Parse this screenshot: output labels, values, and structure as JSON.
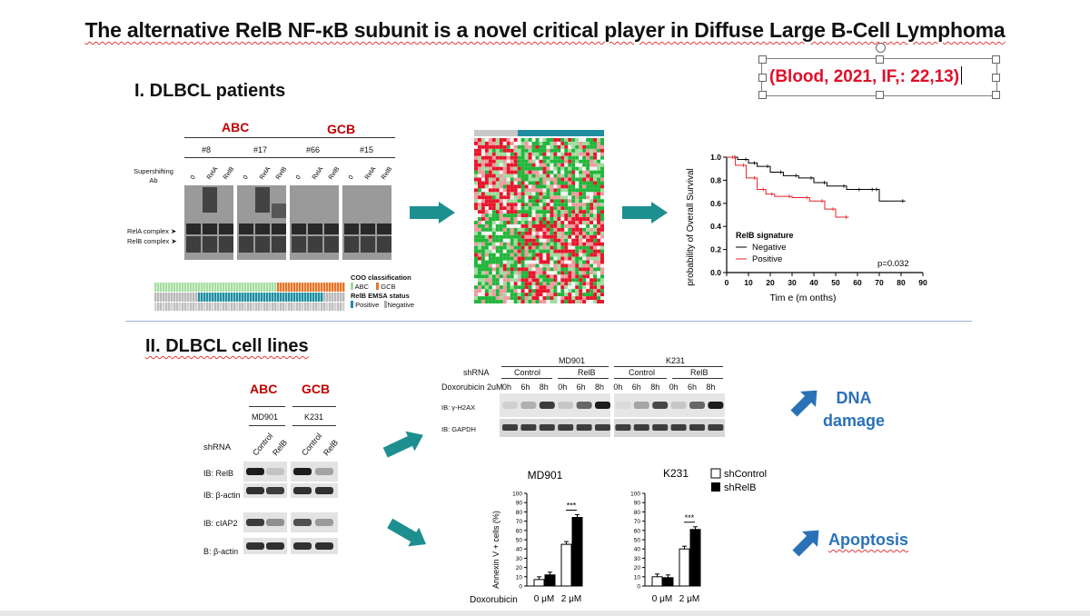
{
  "title": "The alternative RelB NF-κB subunit is a novel critical player in Diffuse Large B-Cell Lymphoma",
  "citation": "(Blood,  2021, IF,: 22,13)",
  "section1": {
    "heading": "I. DLBCL patients",
    "emsa": {
      "group_abc": "ABC",
      "group_gcb": "GCB",
      "samples": [
        "#8",
        "#17",
        "#66",
        "#15"
      ],
      "supershift_label_1": "Supershifting",
      "supershift_label_2": "Ab",
      "lane_labels": [
        "0",
        "RelA",
        "RelB",
        "0",
        "RelA",
        "RelB",
        "0",
        "RelA",
        "RelB",
        "0",
        "RelA",
        "RelB"
      ],
      "complex_rela": "RelA complex",
      "complex_relb": "RelB complex"
    },
    "legend": {
      "coo_title": "COO classification",
      "coo_abc": "ABC",
      "coo_gcb": "GCB",
      "emsa_title": "RelB EMSA status",
      "emsa_positive": "Positive",
      "emsa_negative": "Negative"
    },
    "survival": {
      "ylabel": "probability of Overall Survival",
      "xlabel": "Tim e (m onths)",
      "legend_title": "RelB signature",
      "series_negative": "Negative",
      "series_positive": "Positive",
      "pvalue": "p=0.032",
      "xticks": [
        "0",
        "10",
        "20",
        "30",
        "40",
        "50",
        "60",
        "70",
        "80",
        "90"
      ],
      "yticks": [
        "0.0",
        "0.2",
        "0.4",
        "0.6",
        "0.8",
        "1.0"
      ]
    }
  },
  "section2": {
    "heading": "II. DLBCL cell lines",
    "western": {
      "group_abc": "ABC",
      "group_gcb": "GCB",
      "line_1": "MD901",
      "line_2": "K231",
      "shrna_label": "shRNA",
      "lanes": [
        "Control",
        "RelB",
        "Control",
        "RelB"
      ],
      "blots": [
        "IB: RelB",
        "IB: β-actin",
        "IB: cIAP2",
        "B: β-actin"
      ]
    },
    "timecourse": {
      "line_1": "MD901",
      "line_2": "K231",
      "shrna_label": "shRNA",
      "groups": [
        "Control",
        "RelB",
        "Control",
        "RelB"
      ],
      "dox_label": "Doxorubicin 2uM",
      "times": [
        "0h",
        "6h",
        "8h",
        "0h",
        "6h",
        "8h",
        "0h",
        "6h",
        "8h",
        "0h",
        "6h",
        "8h"
      ],
      "blot_1": "IB: γ-H2AX",
      "blot_2": "IB: GAPDH"
    },
    "result_dna": "DNA damage",
    "result_dna_line1": "DNA",
    "result_dna_line2": "damage",
    "result_apoptosis": "Apoptosis",
    "bar_legend_control": "shControl",
    "bar_legend_relb": "shRelB",
    "bar_ylabel": "Annexin V + cells (%)",
    "dox_axis_label": "Doxorubicin",
    "significance": "***",
    "yticks": [
      "0",
      "10",
      "20",
      "30",
      "40",
      "50",
      "60",
      "70",
      "80",
      "90",
      "100"
    ]
  },
  "chart_data": [
    {
      "type": "line",
      "title": "",
      "xlabel": "Tim e (m onths)",
      "ylabel": "probability of Overall Survival",
      "xlim": [
        0,
        90
      ],
      "ylim": [
        0.0,
        1.0
      ],
      "legend_title": "RelB signature",
      "annotation": "p=0.032",
      "series": [
        {
          "name": "Negative",
          "color": "#000000",
          "x": [
            0,
            5,
            10,
            14,
            20,
            26,
            33,
            40,
            46,
            55,
            62,
            68,
            70,
            82
          ],
          "y": [
            1.0,
            0.98,
            0.95,
            0.92,
            0.87,
            0.84,
            0.82,
            0.78,
            0.75,
            0.72,
            0.72,
            0.72,
            0.62,
            0.62
          ]
        },
        {
          "name": "Positive",
          "color": "#e8202a",
          "x": [
            0,
            4,
            9,
            14,
            18,
            22,
            30,
            38,
            45,
            50,
            56
          ],
          "y": [
            1.0,
            0.93,
            0.82,
            0.72,
            0.68,
            0.66,
            0.65,
            0.62,
            0.55,
            0.48,
            0.48
          ]
        }
      ]
    },
    {
      "type": "bar",
      "title": "MD901",
      "xlabel": "Doxorubicin",
      "ylabel": "Annexin V + cells (%)",
      "ylim": [
        0,
        100
      ],
      "categories": [
        "0 μM",
        "2 μM"
      ],
      "series": [
        {
          "name": "shControl",
          "values": [
            7,
            45
          ]
        },
        {
          "name": "shRelB",
          "values": [
            12,
            74
          ]
        }
      ],
      "annotation": "***"
    },
    {
      "type": "bar",
      "title": "K231",
      "xlabel": "",
      "ylabel": "",
      "ylim": [
        0,
        100
      ],
      "categories": [
        "0 μM",
        "2 μM"
      ],
      "series": [
        {
          "name": "shControl",
          "values": [
            10,
            40
          ]
        },
        {
          "name": "shRelB",
          "values": [
            9,
            61
          ]
        }
      ],
      "annotation": "***"
    }
  ],
  "colors": {
    "title_red": "#c00000",
    "accent_blue": "#2a72b8",
    "teal": "#1e8f90",
    "citation_red": "#e0102a",
    "km_positive": "#e8202a"
  }
}
